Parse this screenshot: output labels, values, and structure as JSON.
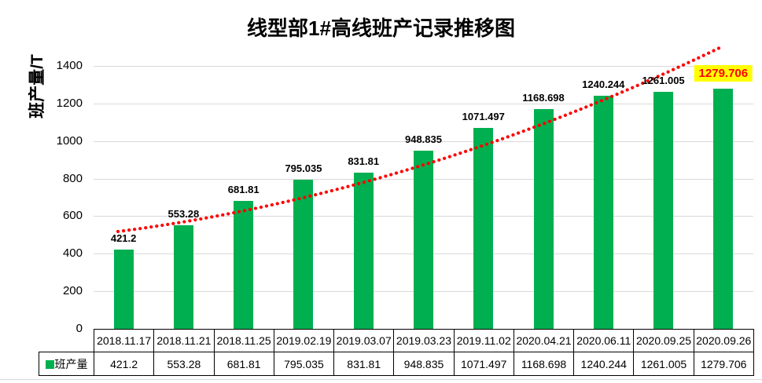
{
  "title": "线型部1#高线班产记录推移图",
  "y_axis": {
    "label": "班产量/T",
    "ticks": [
      0,
      200,
      400,
      600,
      800,
      1000,
      1200,
      1400
    ]
  },
  "legend": {
    "label": "班产量"
  },
  "colors": {
    "bar": "#00B050",
    "trendline": "#FF0000",
    "highlight_bg": "#FFFF00",
    "highlight_text": "#FF0000",
    "gridline": "#D9D9D9",
    "label_text": "#000000",
    "table_border": "#000000"
  },
  "chart_data": {
    "type": "bar",
    "title": "线型部1#高线班产记录推移图",
    "ylabel": "班产量/T",
    "xlabel": "",
    "ylim": [
      0,
      1400
    ],
    "ytick_interval": 200,
    "yticks": [
      0,
      200,
      400,
      600,
      800,
      1000,
      1200,
      1400
    ],
    "grid": "horizontal",
    "legend_position": "bottom-table-left",
    "categories": [
      "2018.11.17",
      "2018.11.21",
      "2018.11.25",
      "2019.02.19",
      "2019.03.07",
      "2019.03.23",
      "2019.11.02",
      "2020.04.21",
      "2020.06.11",
      "2020.09.25",
      "2020.09.26"
    ],
    "series": [
      {
        "name": "班产量",
        "color": "#00B050",
        "values": [
          421.2,
          553.28,
          681.81,
          795.035,
          831.81,
          948.835,
          1071.497,
          1168.698,
          1240.244,
          1261.005,
          1279.706
        ]
      }
    ],
    "data_labels": [
      "421.2",
      "553.28",
      "681.81",
      "795.035",
      "831.81",
      "948.835",
      "1071.497",
      "1168.698",
      "1240.244",
      "1261.005",
      "1279.706"
    ],
    "highlighted_label": {
      "index": 10,
      "value": "1279.706",
      "background": "#FFFF00",
      "text_color": "#FF0000"
    },
    "trendline": {
      "style": "dotted",
      "color": "#FF0000",
      "approx_start_value": 520,
      "approx_end_value": 1500
    }
  }
}
